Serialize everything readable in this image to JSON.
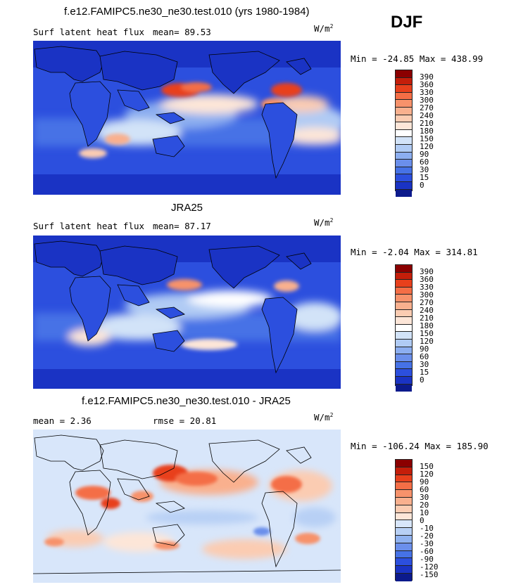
{
  "season": "DJF",
  "panel1": {
    "title": "f.e12.FAMIPC5.ne30_ne30.test.010 (yrs 1980-1984)",
    "left_label": "Surf latent heat flux",
    "mean_label": "mean=  89.53",
    "units_base": "W/m",
    "units_exp": "2",
    "minmax": "Min = -24.85 Max = 438.99"
  },
  "panel2": {
    "title": "JRA25",
    "left_label": "Surf latent heat flux",
    "mean_label": "mean=  87.17",
    "units_base": "W/m",
    "units_exp": "2",
    "minmax": "Min =  -2.04 Max = 314.81"
  },
  "panel3": {
    "title": "f.e12.FAMIPC5.ne30_ne30.test.010 - JRA25",
    "left_label": "mean =   2.36",
    "mean_label": "rmse =  20.81",
    "units_base": "W/m",
    "units_exp": "2",
    "minmax": "Min = -106.24 Max = 185.90"
  },
  "colorbar_abs": {
    "levels": [
      "390",
      "360",
      "330",
      "300",
      "270",
      "240",
      "210",
      "180",
      "150",
      "120",
      "90",
      "60",
      "30",
      "15",
      "0"
    ],
    "colors": [
      "#8b0000",
      "#c41e0a",
      "#e8401c",
      "#f46e46",
      "#f7926b",
      "#f9b08e",
      "#fbccb2",
      "#fde6d8",
      "#ffffff",
      "#d2e3f8",
      "#b0cbf4",
      "#8caef0",
      "#6b8feb",
      "#4672e6",
      "#2c4fde",
      "#1a33c4",
      "#0c1a8c"
    ]
  },
  "colorbar_diff": {
    "levels": [
      "150",
      "120",
      "90",
      "60",
      "30",
      "20",
      "10",
      "0",
      "-10",
      "-20",
      "-30",
      "-60",
      "-90",
      "-120",
      "-150"
    ],
    "colors": [
      "#8b0000",
      "#c41e0a",
      "#e8401c",
      "#f46e46",
      "#f7926b",
      "#f9b08e",
      "#fbccb2",
      "#fde6d8",
      "#d8e6fa",
      "#b8d0f5",
      "#90b2f0",
      "#6b8feb",
      "#4672e6",
      "#2c4fde",
      "#1a33c4",
      "#0c1a8c"
    ]
  }
}
